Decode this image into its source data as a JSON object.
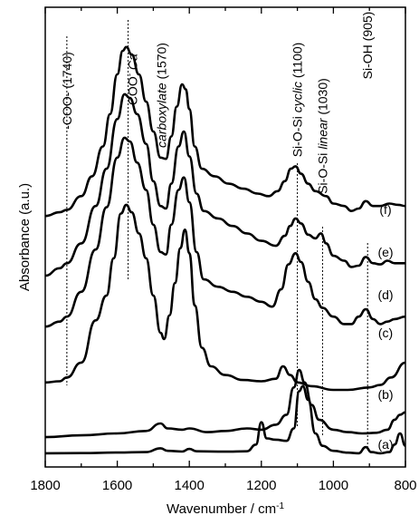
{
  "chart_data": {
    "type": "line",
    "title": "",
    "xlabel": "Wavenumber / cm",
    "xlabel_superscript": "-1",
    "ylabel": "Absorbance (a.u.)",
    "xlim": [
      1800,
      800
    ],
    "x_reversed": true,
    "xticks": [
      1800,
      1600,
      1400,
      1200,
      1000,
      800
    ],
    "xtick_labels": [
      "1800",
      "1600",
      "1400",
      "1200",
      "1000",
      "800"
    ],
    "y_ticks_shown": false,
    "grid": false,
    "legend": "none",
    "line_color": "#000000",
    "annotations": [
      {
        "id": "coo-1740",
        "text": "-COO- (1740)",
        "x": 1740
      },
      {
        "id": "coo-ca",
        "text": "-COO",
        "superscript": "-",
        "italic_suffix": " Ca",
        "x": 1570
      },
      {
        "id": "carboxylate",
        "text": "carboxylate",
        "italic": true,
        "suffix": " (1570)",
        "x": 1570
      },
      {
        "id": "si-o-si-cyclic",
        "text": "Si-O-Si ",
        "italic_part": "cyclic",
        "suffix": " (1100)",
        "x": 1100
      },
      {
        "id": "si-o-si-linear",
        "text": "Si-O-Si ",
        "italic_part": "linear",
        "suffix": " (1030)",
        "x": 1030
      },
      {
        "id": "si-oh",
        "text": "Si-OH (905)",
        "x": 905
      }
    ],
    "series": [
      {
        "name": "(a)",
        "offset": 0.3,
        "points": [
          [
            1800,
            0.2
          ],
          [
            1700,
            0.22
          ],
          [
            1600,
            0.26
          ],
          [
            1520,
            0.3
          ],
          [
            1480,
            0.6
          ],
          [
            1460,
            0.4
          ],
          [
            1420,
            0.34
          ],
          [
            1400,
            0.55
          ],
          [
            1380,
            0.36
          ],
          [
            1300,
            0.33
          ],
          [
            1240,
            0.36
          ],
          [
            1215,
            0.9
          ],
          [
            1200,
            2.7
          ],
          [
            1185,
            1.4
          ],
          [
            1160,
            1.3
          ],
          [
            1130,
            1.2
          ],
          [
            1110,
            2.2
          ],
          [
            1095,
            5.2
          ],
          [
            1085,
            5.6
          ],
          [
            1070,
            4.5
          ],
          [
            1050,
            1.8
          ],
          [
            1030,
            0.8
          ],
          [
            1000,
            0.4
          ],
          [
            960,
            0.25
          ],
          [
            930,
            0.2
          ],
          [
            910,
            0.7
          ],
          [
            895,
            0.3
          ],
          [
            870,
            0.2
          ],
          [
            845,
            0.3
          ],
          [
            830,
            0.9
          ],
          [
            815,
            1.8
          ],
          [
            800,
            0.8
          ]
        ]
      },
      {
        "name": "(b)",
        "offset": 1.6,
        "points": [
          [
            1800,
            0.2
          ],
          [
            1700,
            0.35
          ],
          [
            1600,
            0.5
          ],
          [
            1520,
            0.7
          ],
          [
            1480,
            1.3
          ],
          [
            1460,
            0.9
          ],
          [
            1420,
            0.8
          ],
          [
            1400,
            0.9
          ],
          [
            1350,
            0.6
          ],
          [
            1300,
            0.7
          ],
          [
            1240,
            0.9
          ],
          [
            1200,
            0.8
          ],
          [
            1160,
            1.2
          ],
          [
            1130,
            2.0
          ],
          [
            1110,
            4.2
          ],
          [
            1095,
            5.6
          ],
          [
            1080,
            4.6
          ],
          [
            1060,
            2.8
          ],
          [
            1040,
            1.6
          ],
          [
            1000,
            0.8
          ],
          [
            960,
            0.6
          ],
          [
            920,
            0.5
          ],
          [
            880,
            0.55
          ],
          [
            850,
            0.8
          ],
          [
            830,
            1.6
          ],
          [
            815,
            2.0
          ],
          [
            800,
            2.2
          ]
        ]
      },
      {
        "name": "(c)",
        "offset": 5.6,
        "points": [
          [
            1800,
            0.6
          ],
          [
            1760,
            0.7
          ],
          [
            1740,
            1.0
          ],
          [
            1700,
            2.2
          ],
          [
            1660,
            5.6
          ],
          [
            1630,
            7.6
          ],
          [
            1610,
            10.6
          ],
          [
            1590,
            14.2
          ],
          [
            1575,
            14.9
          ],
          [
            1560,
            14.3
          ],
          [
            1540,
            12.6
          ],
          [
            1520,
            10.6
          ],
          [
            1500,
            7.6
          ],
          [
            1480,
            4.6
          ],
          [
            1470,
            4.1
          ],
          [
            1455,
            6.0
          ],
          [
            1440,
            8.6
          ],
          [
            1425,
            11.4
          ],
          [
            1412,
            12.9
          ],
          [
            1400,
            11.0
          ],
          [
            1385,
            6.8
          ],
          [
            1365,
            3.4
          ],
          [
            1340,
            1.9
          ],
          [
            1300,
            1.2
          ],
          [
            1250,
            0.8
          ],
          [
            1200,
            0.7
          ],
          [
            1160,
            0.9
          ],
          [
            1140,
            1.9
          ],
          [
            1120,
            1.2
          ],
          [
            1100,
            0.6
          ],
          [
            1060,
            0.3
          ],
          [
            1000,
            0.0
          ],
          [
            960,
            0.0
          ],
          [
            900,
            0.2
          ],
          [
            870,
            0.4
          ],
          [
            840,
            1.0
          ],
          [
            800,
            2.2
          ]
        ]
      },
      {
        "name": "(d)",
        "offset": 10.3,
        "points": [
          [
            1800,
            0.4
          ],
          [
            1760,
            0.8
          ],
          [
            1740,
            1.2
          ],
          [
            1700,
            3.2
          ],
          [
            1660,
            6.6
          ],
          [
            1630,
            10.0
          ],
          [
            1600,
            14.0
          ],
          [
            1580,
            15.6
          ],
          [
            1565,
            15.3
          ],
          [
            1545,
            13.6
          ],
          [
            1520,
            11.4
          ],
          [
            1500,
            8.6
          ],
          [
            1480,
            6.4
          ],
          [
            1465,
            6.2
          ],
          [
            1450,
            8.6
          ],
          [
            1430,
            11.4
          ],
          [
            1415,
            12.4
          ],
          [
            1400,
            10.4
          ],
          [
            1380,
            6.4
          ],
          [
            1360,
            4.2
          ],
          [
            1320,
            3.6
          ],
          [
            1280,
            3.2
          ],
          [
            1240,
            2.8
          ],
          [
            1200,
            2.4
          ],
          [
            1170,
            2.0
          ],
          [
            1145,
            3.4
          ],
          [
            1125,
            5.4
          ],
          [
            1105,
            6.3
          ],
          [
            1090,
            5.6
          ],
          [
            1070,
            4.0
          ],
          [
            1050,
            2.6
          ],
          [
            1030,
            1.9
          ],
          [
            1000,
            1.2
          ],
          [
            970,
            0.6
          ],
          [
            950,
            0.6
          ],
          [
            930,
            1.2
          ],
          [
            910,
            1.8
          ],
          [
            890,
            1.0
          ],
          [
            870,
            0.6
          ],
          [
            850,
            0.8
          ],
          [
            830,
            1.0
          ],
          [
            800,
            1.2
          ]
        ]
      },
      {
        "name": "(e)",
        "offset": 14.8,
        "points": [
          [
            1800,
            0.0
          ],
          [
            1760,
            0.6
          ],
          [
            1740,
            1.0
          ],
          [
            1700,
            2.6
          ],
          [
            1660,
            5.6
          ],
          [
            1630,
            8.6
          ],
          [
            1600,
            12.6
          ],
          [
            1580,
            14.6
          ],
          [
            1565,
            14.3
          ],
          [
            1545,
            13.0
          ],
          [
            1520,
            10.6
          ],
          [
            1500,
            7.6
          ],
          [
            1480,
            5.6
          ],
          [
            1465,
            5.4
          ],
          [
            1450,
            7.4
          ],
          [
            1430,
            10.4
          ],
          [
            1415,
            11.6
          ],
          [
            1400,
            9.6
          ],
          [
            1380,
            6.6
          ],
          [
            1360,
            5.2
          ],
          [
            1320,
            4.6
          ],
          [
            1280,
            4.0
          ],
          [
            1240,
            3.4
          ],
          [
            1200,
            2.8
          ],
          [
            1160,
            2.4
          ],
          [
            1135,
            3.2
          ],
          [
            1120,
            4.0
          ],
          [
            1105,
            4.6
          ],
          [
            1090,
            4.2
          ],
          [
            1070,
            3.3
          ],
          [
            1050,
            3.0
          ],
          [
            1035,
            3.4
          ],
          [
            1020,
            2.6
          ],
          [
            1000,
            1.6
          ],
          [
            970,
            1.2
          ],
          [
            950,
            0.7
          ],
          [
            930,
            0.8
          ],
          [
            910,
            1.5
          ],
          [
            890,
            1.0
          ],
          [
            870,
            0.9
          ],
          [
            850,
            1.2
          ],
          [
            830,
            1.0
          ],
          [
            800,
            1.0
          ]
        ]
      },
      {
        "name": "(f)",
        "offset": 19.6,
        "points": [
          [
            1800,
            0.0
          ],
          [
            1760,
            0.3
          ],
          [
            1740,
            0.5
          ],
          [
            1700,
            1.6
          ],
          [
            1670,
            3.2
          ],
          [
            1640,
            5.6
          ],
          [
            1620,
            8.2
          ],
          [
            1600,
            11.4
          ],
          [
            1585,
            13.3
          ],
          [
            1575,
            13.6
          ],
          [
            1560,
            13.0
          ],
          [
            1540,
            11.4
          ],
          [
            1520,
            9.2
          ],
          [
            1500,
            6.8
          ],
          [
            1480,
            4.7
          ],
          [
            1465,
            4.6
          ],
          [
            1450,
            6.4
          ],
          [
            1435,
            8.8
          ],
          [
            1420,
            10.6
          ],
          [
            1410,
            10.2
          ],
          [
            1400,
            8.6
          ],
          [
            1385,
            5.6
          ],
          [
            1365,
            3.8
          ],
          [
            1330,
            3.2
          ],
          [
            1290,
            2.6
          ],
          [
            1250,
            2.2
          ],
          [
            1210,
            1.8
          ],
          [
            1180,
            1.6
          ],
          [
            1155,
            2.0
          ],
          [
            1135,
            2.8
          ],
          [
            1118,
            3.8
          ],
          [
            1105,
            4.0
          ],
          [
            1090,
            3.4
          ],
          [
            1070,
            2.6
          ],
          [
            1050,
            2.0
          ],
          [
            1020,
            1.6
          ],
          [
            1000,
            1.0
          ],
          [
            970,
            0.8
          ],
          [
            950,
            0.4
          ],
          [
            930,
            0.6
          ],
          [
            910,
            1.2
          ],
          [
            890,
            0.8
          ],
          [
            870,
            0.8
          ],
          [
            845,
            1.0
          ],
          [
            820,
            0.9
          ],
          [
            800,
            0.8
          ]
        ]
      }
    ]
  }
}
